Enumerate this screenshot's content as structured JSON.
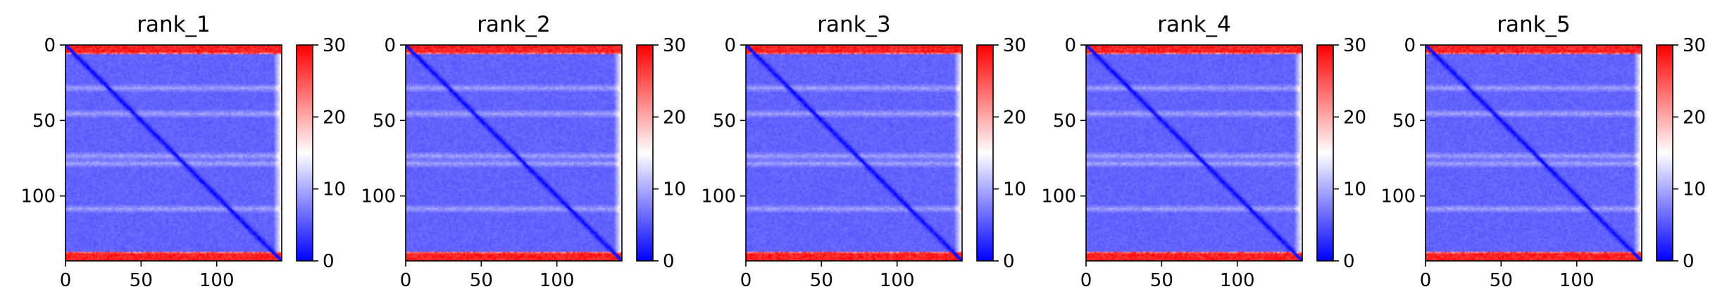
{
  "chart_data": [
    {
      "type": "heatmap",
      "title": "rank_1",
      "xlabel": "",
      "ylabel": "",
      "n": 143,
      "xlim": [
        0,
        143
      ],
      "ylim": [
        143,
        0
      ],
      "xticks": [
        0,
        50,
        100
      ],
      "yticks": [
        0,
        50,
        100
      ],
      "colormap": "bwr",
      "vmin": 0,
      "vmax": 30,
      "colorbar_ticks": [
        0,
        10,
        20,
        30
      ],
      "features": {
        "diagonal_value": 0,
        "background_value": 5,
        "high_edge_rows": "0-5 and 136-143",
        "high_edge_value": 30,
        "lighter_band_rows": [
          28,
          45,
          73,
          78,
          108
        ]
      }
    },
    {
      "type": "heatmap",
      "title": "rank_2",
      "xlabel": "",
      "ylabel": "",
      "n": 143,
      "xlim": [
        0,
        143
      ],
      "ylim": [
        143,
        0
      ],
      "xticks": [
        0,
        50,
        100
      ],
      "yticks": [
        0,
        50,
        100
      ],
      "colormap": "bwr",
      "vmin": 0,
      "vmax": 30,
      "colorbar_ticks": [
        0,
        10,
        20,
        30
      ],
      "features": {
        "diagonal_value": 0,
        "background_value": 5,
        "high_edge_rows": "0-5 and 136-143",
        "high_edge_value": 30,
        "lighter_band_rows": [
          28,
          45,
          73,
          78,
          108
        ]
      }
    },
    {
      "type": "heatmap",
      "title": "rank_3",
      "xlabel": "",
      "ylabel": "",
      "n": 143,
      "xlim": [
        0,
        143
      ],
      "ylim": [
        143,
        0
      ],
      "xticks": [
        0,
        50,
        100
      ],
      "yticks": [
        0,
        50,
        100
      ],
      "colormap": "bwr",
      "vmin": 0,
      "vmax": 30,
      "colorbar_ticks": [
        0,
        10,
        20,
        30
      ],
      "features": {
        "diagonal_value": 0,
        "background_value": 5,
        "high_edge_rows": "0-5 and 136-143",
        "high_edge_value": 30,
        "lighter_band_rows": [
          28,
          45,
          73,
          78,
          108
        ]
      }
    },
    {
      "type": "heatmap",
      "title": "rank_4",
      "xlabel": "",
      "ylabel": "",
      "n": 143,
      "xlim": [
        0,
        143
      ],
      "ylim": [
        143,
        0
      ],
      "xticks": [
        0,
        50,
        100
      ],
      "yticks": [
        0,
        50,
        100
      ],
      "colormap": "bwr",
      "vmin": 0,
      "vmax": 30,
      "colorbar_ticks": [
        0,
        10,
        20,
        30
      ],
      "features": {
        "diagonal_value": 0,
        "background_value": 5,
        "high_edge_rows": "0-5 and 136-143",
        "high_edge_value": 30,
        "lighter_band_rows": [
          28,
          45,
          73,
          78,
          108
        ]
      }
    },
    {
      "type": "heatmap",
      "title": "rank_5",
      "xlabel": "",
      "ylabel": "",
      "n": 143,
      "xlim": [
        0,
        143
      ],
      "ylim": [
        143,
        0
      ],
      "xticks": [
        0,
        50,
        100
      ],
      "yticks": [
        0,
        50,
        100
      ],
      "colormap": "bwr",
      "vmin": 0,
      "vmax": 30,
      "colorbar_ticks": [
        0,
        10,
        20,
        30
      ],
      "features": {
        "diagonal_value": 0,
        "background_value": 5,
        "high_edge_rows": "0-5 and 136-143",
        "high_edge_value": 30,
        "lighter_band_rows": [
          28,
          45,
          73,
          78,
          108
        ]
      }
    }
  ],
  "colors": {
    "low": "#0000ff",
    "mid": "#ffffff",
    "high": "#ff0000",
    "axis": "#000000"
  }
}
